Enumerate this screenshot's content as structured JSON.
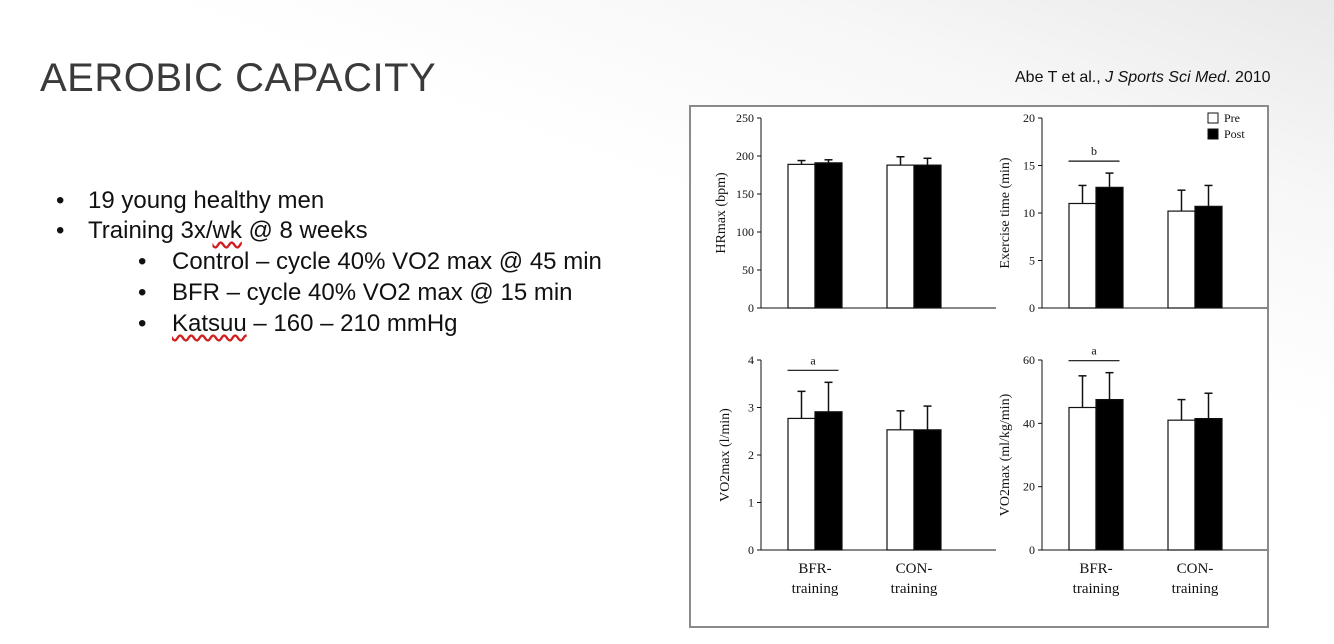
{
  "slide": {
    "title": "AEROBIC CAPACITY",
    "citation": {
      "authors": "Abe T et al., ",
      "journal": "J Sports Sci Med",
      "year": ". 2010"
    }
  },
  "bullets": [
    {
      "text": "19 young healthy men"
    },
    {
      "pre": "Training 3x/",
      "squiggle": "wk",
      "post": " @ 8 weeks",
      "sub": [
        {
          "text": "Control – cycle 40% VO2 max @ 45 min"
        },
        {
          "text": "BFR – cycle 40% VO2 max @ 15 min"
        },
        {
          "squiggle": "Katsuu",
          "post": " – 160 – 210 mmHg"
        }
      ]
    }
  ],
  "legend": {
    "pre": "Pre",
    "post": "Post",
    "colors": {
      "pre": "#ffffff",
      "post": "#000000"
    }
  },
  "chart_data": [
    {
      "type": "bar",
      "ylabel": "HRmax (bpm)",
      "ylim": [
        0,
        250
      ],
      "yticks": [
        "0",
        "50",
        "100",
        "150",
        "200",
        "250"
      ],
      "categories": [
        "BFR-training",
        "CON-training"
      ],
      "series": [
        {
          "name": "Pre",
          "values": [
            189,
            188
          ],
          "err": [
            5,
            11
          ]
        },
        {
          "name": "Post",
          "values": [
            191,
            188
          ],
          "err": [
            4,
            9
          ]
        }
      ],
      "annotation": ""
    },
    {
      "type": "bar",
      "ylabel": "Exercise time (min)",
      "ylim": [
        0,
        20
      ],
      "yticks": [
        "0",
        "5",
        "10",
        "15",
        "20"
      ],
      "categories": [
        "BFR-training",
        "CON-training"
      ],
      "series": [
        {
          "name": "Pre",
          "values": [
            11.0,
            10.2
          ],
          "err": [
            1.9,
            2.2
          ]
        },
        {
          "name": "Post",
          "values": [
            12.7,
            10.7
          ],
          "err": [
            1.5,
            2.2
          ]
        }
      ],
      "annotation": "b"
    },
    {
      "type": "bar",
      "ylabel": "VO2max (l/min)",
      "ylim": [
        0,
        4
      ],
      "yticks": [
        "0",
        "1",
        "2",
        "3",
        "4"
      ],
      "categories": [
        "BFR-training",
        "CON-training"
      ],
      "series": [
        {
          "name": "Pre",
          "values": [
            2.77,
            2.53
          ],
          "err": [
            0.57,
            0.4
          ]
        },
        {
          "name": "Post",
          "values": [
            2.91,
            2.53
          ],
          "err": [
            0.62,
            0.5
          ]
        }
      ],
      "annotation": "a"
    },
    {
      "type": "bar",
      "ylabel": "VO2max (ml/kg/min)",
      "ylim": [
        0,
        60
      ],
      "yticks": [
        "0",
        "20",
        "40",
        "60"
      ],
      "categories": [
        "BFR-training",
        "CON-training"
      ],
      "series": [
        {
          "name": "Pre",
          "values": [
            45,
            41
          ],
          "err": [
            10,
            6.5
          ]
        },
        {
          "name": "Post",
          "values": [
            47.5,
            41.5
          ],
          "err": [
            8.5,
            8
          ]
        }
      ],
      "annotation": "a"
    }
  ],
  "xlabels": [
    {
      "line1": "BFR-",
      "line2": "training"
    },
    {
      "line1": "CON-",
      "line2": "training"
    }
  ]
}
